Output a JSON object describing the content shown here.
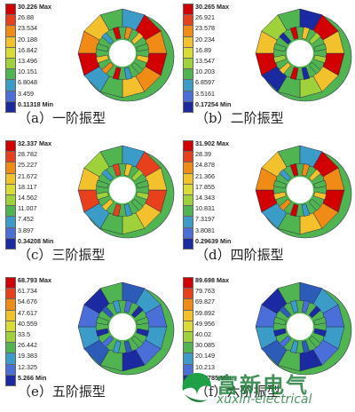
{
  "palette": [
    "#d20000",
    "#e8401c",
    "#f08b16",
    "#f2c12b",
    "#d8dc34",
    "#9fd23a",
    "#50b450",
    "#3c9cc8",
    "#4a6fd8",
    "#1b2aa0"
  ],
  "panels": [
    {
      "id": "a",
      "caption": "（a）一阶振型",
      "legend": [
        "30.226 Max",
        "26.88",
        "23.534",
        "20.188",
        "16.842",
        "13.496",
        "10.151",
        "6.8048",
        "3.459",
        "0.11318 Min"
      ],
      "shape_colors": [
        "#d20000",
        "#f08b16",
        "#f2c12b",
        "#50b450",
        "#3c9cc8"
      ]
    },
    {
      "id": "b",
      "caption": "（b）二阶振型",
      "legend": [
        "30.265 Max",
        "26.921",
        "23.578",
        "20.234",
        "16.89",
        "13.547",
        "10.203",
        "6.8597",
        "3.5161",
        "0.17254 Min"
      ],
      "shape_colors": [
        "#d20000",
        "#f2c12b",
        "#9fd23a",
        "#50b450",
        "#1b2aa0"
      ]
    },
    {
      "id": "c",
      "caption": "（c）三阶振型",
      "legend": [
        "32.337 Max",
        "28.782",
        "25.227",
        "21.672",
        "18.117",
        "14.562",
        "11.007",
        "7.452",
        "3.897",
        "0.34208 Min"
      ],
      "shape_colors": [
        "#e8401c",
        "#f2c12b",
        "#9fd23a",
        "#50b450",
        "#3c9cc8"
      ]
    },
    {
      "id": "d",
      "caption": "（d）四阶振型",
      "legend": [
        "31.902 Max",
        "28.39",
        "24.878",
        "21.366",
        "17.855",
        "14.343",
        "10.831",
        "7.3197",
        "3.8081",
        "0.29639 Min"
      ],
      "shape_colors": [
        "#d20000",
        "#f08b16",
        "#f2c12b",
        "#50b450",
        "#3c9cc8"
      ]
    },
    {
      "id": "e",
      "caption": "（e）五阶振型",
      "legend": [
        "68.793 Max",
        "61.734",
        "54.676",
        "47.617",
        "40.559",
        "33.5",
        "26.442",
        "19.383",
        "12.325",
        "5.266 Min"
      ],
      "shape_colors": [
        "#3c9cc8",
        "#4a6fd8",
        "#1b2aa0",
        "#50b450",
        "#2c5bb8"
      ]
    },
    {
      "id": "f",
      "caption": "（f）六阶振型",
      "legend": [
        "89.698 Max",
        "79.763",
        "69.827",
        "59.892",
        "49.956",
        "40.02",
        "30.085",
        "20.149",
        "10.213",
        "0.27785 Min"
      ],
      "shape_colors": [
        "#3c9cc8",
        "#4a6fd8",
        "#1b2aa0",
        "#50b450",
        "#2c5bb8"
      ]
    }
  ],
  "watermark": {
    "brand": "富新电气",
    "url": "xuxin-electrical"
  }
}
